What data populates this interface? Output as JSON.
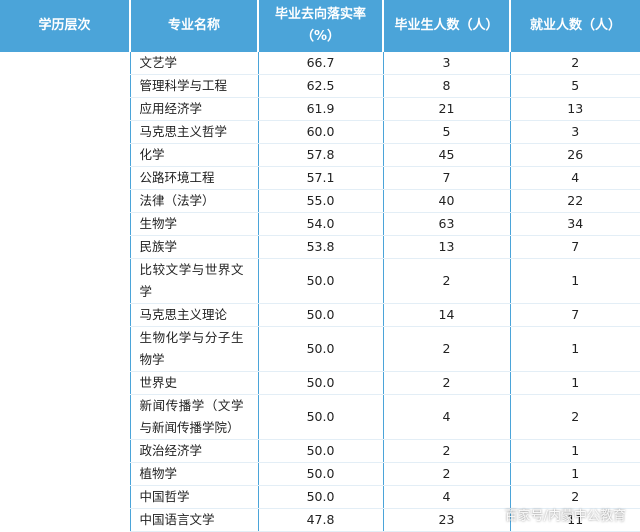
{
  "table": {
    "header": [
      "学历层次",
      "专业名称",
      [
        "毕业去向落实率",
        "（%）"
      ],
      "毕业生人数（人）",
      "就业人数（人）"
    ],
    "rows": [
      [
        "",
        "文艺学",
        "66.7",
        "3",
        "2"
      ],
      [
        "",
        "管理科学与工程",
        "62.5",
        "8",
        "5"
      ],
      [
        "",
        "应用经济学",
        "61.9",
        "21",
        "13"
      ],
      [
        "",
        "马克思主义哲学",
        "60.0",
        "5",
        "3"
      ],
      [
        "",
        "化学",
        "57.8",
        "45",
        "26"
      ],
      [
        "",
        "公路环境工程",
        "57.1",
        "7",
        "4"
      ],
      [
        "",
        "法律（法学）",
        "55.0",
        "40",
        "22"
      ],
      [
        "",
        "生物学",
        "54.0",
        "63",
        "34"
      ],
      [
        "",
        "民族学",
        "53.8",
        "13",
        "7"
      ],
      [
        "",
        "比较文学与世界文学",
        "50.0",
        "2",
        "1"
      ],
      [
        "",
        "马克思主义理论",
        "50.0",
        "14",
        "7"
      ],
      [
        "",
        "生物化学与分子生物学",
        "50.0",
        "2",
        "1"
      ],
      [
        "",
        "世界史",
        "50.0",
        "2",
        "1"
      ],
      [
        "",
        "新闻传播学（文学与新闻传播学院）",
        "50.0",
        "4",
        "2"
      ],
      [
        "",
        "政治经济学",
        "50.0",
        "2",
        "1"
      ],
      [
        "",
        "植物学",
        "50.0",
        "2",
        "1"
      ],
      [
        "",
        "中国哲学",
        "50.0",
        "4",
        "2"
      ],
      [
        "",
        "中国语言文学",
        "47.8",
        "23",
        "11"
      ]
    ]
  },
  "watermark": "百家号/内蒙中公教育"
}
